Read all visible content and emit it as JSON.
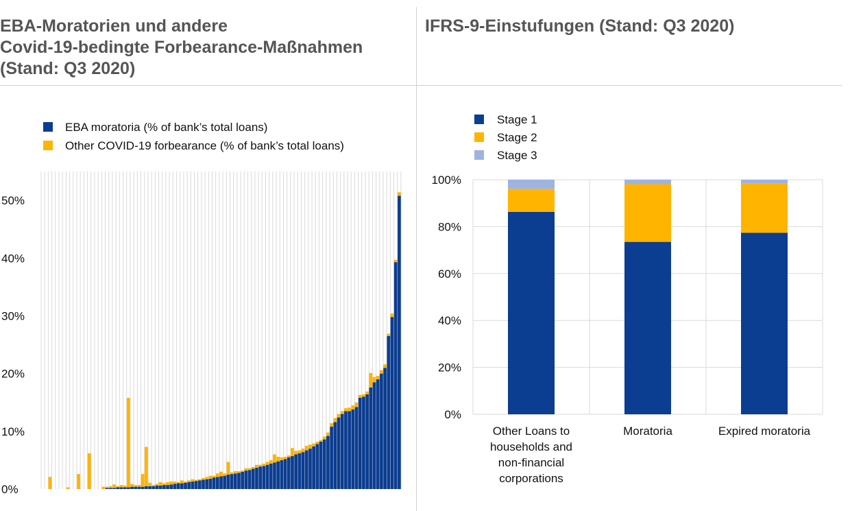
{
  "panels": {
    "left_title_lines": [
      "EBA-Moratorien und andere",
      "Covid-19-bedingte Forbearance-Maßnahmen",
      "(Stand: Q3 2020)"
    ],
    "right_title": "IFRS-9-Einstufungen (Stand: Q3 2020)"
  },
  "colors": {
    "dark_blue": "#0b3d91",
    "yellow": "#ffb400",
    "light_blue": "#9fb3e0",
    "grid": "#d9d9d9"
  },
  "chart_data": [
    {
      "type": "bar",
      "stacked": true,
      "title": "EBA-Moratorien und andere Covid-19-bedingte Forbearance-Maßnahmen (Stand: Q3 2020)",
      "xlabel": "",
      "ylabel": "",
      "ylim": [
        0,
        55
      ],
      "yticks": [
        0,
        10,
        20,
        30,
        40,
        50
      ],
      "ytick_labels": [
        "0%",
        "10%",
        "20%",
        "30%",
        "40%",
        "50%"
      ],
      "legend": [
        "EBA moratoria (% of bank’s total loans)",
        "Other COVID-19 forbearance  (% of bank’s total loans)"
      ],
      "legend_position": "top-left",
      "series": [
        {
          "name": "EBA moratoria (% of bank’s total loans)",
          "values": [
            0,
            0,
            0,
            0,
            0,
            0,
            0,
            0,
            0,
            0,
            0,
            0,
            0,
            0,
            0,
            0,
            0,
            0,
            0.2,
            0.2,
            0.2,
            0.3,
            0.3,
            0.3,
            0.3,
            0.4,
            0.4,
            0.4,
            0.4,
            0.5,
            0.5,
            0.5,
            0.6,
            0.6,
            0.7,
            0.7,
            0.8,
            0.9,
            1.0,
            1.0,
            1.1,
            1.2,
            1.3,
            1.4,
            1.5,
            1.6,
            1.7,
            1.8,
            2.0,
            2.1,
            2.2,
            2.3,
            2.5,
            2.6,
            2.7,
            2.8,
            3.0,
            3.2,
            3.3,
            3.5,
            3.7,
            3.9,
            4.0,
            4.2,
            4.4,
            4.6,
            4.8,
            5.0,
            5.2,
            5.5,
            5.7,
            6.0,
            6.2,
            6.4,
            6.7,
            7.0,
            7.4,
            7.8,
            8.2,
            8.6,
            9.2,
            10.8,
            11.6,
            12.4,
            13.0,
            13.5,
            13.5,
            13.8,
            14.2,
            15.8,
            16.0,
            16.4,
            17.6,
            18.5,
            19.0,
            20.0,
            21.0,
            26.5,
            29.8,
            39.3,
            50.8
          ]
        },
        {
          "name": "Other COVID-19 forbearance  (% of bank’s total loans)",
          "values": [
            0,
            0,
            2.1,
            0,
            0,
            0,
            0,
            0.3,
            0,
            0,
            2.6,
            0,
            0,
            6.2,
            0,
            0,
            0,
            0.4,
            0.2,
            0.3,
            0.6,
            0.2,
            0.4,
            0.3,
            15.5,
            0.5,
            0.3,
            0.3,
            2.2,
            6.8,
            0.6,
            0.2,
            0.3,
            0.6,
            0.3,
            0.5,
            0.5,
            0.4,
            0.2,
            0.5,
            0.2,
            0.3,
            0.4,
            0.2,
            0.2,
            0.3,
            0.4,
            0.5,
            0.3,
            0.6,
            0.8,
            0.4,
            2.2,
            0.3,
            0.4,
            0.3,
            0.2,
            0.4,
            0.3,
            0.3,
            0.5,
            0.3,
            0.4,
            0.5,
            0.6,
            1.4,
            0.8,
            0.5,
            0.4,
            0.3,
            1.4,
            0.6,
            0.5,
            0.6,
            0.8,
            0.7,
            0.5,
            0.4,
            0.3,
            0.5,
            0.6,
            0.6,
            0.7,
            0.6,
            0.5,
            0.5,
            0.6,
            0.7,
            0.8,
            0.5,
            0.4,
            0.5,
            2.5,
            0.9,
            0.6,
            0.6,
            0.6,
            0.4,
            0.6,
            0.4,
            0.6
          ]
        }
      ]
    },
    {
      "type": "bar",
      "stacked": true,
      "title": "IFRS-9-Einstufungen (Stand: Q3 2020)",
      "xlabel": "",
      "ylabel": "",
      "ylim": [
        0,
        100
      ],
      "yticks": [
        0,
        20,
        40,
        60,
        80,
        100
      ],
      "ytick_labels": [
        "0%",
        "20%",
        "40%",
        "60%",
        "80%",
        "100%"
      ],
      "legend": [
        "Stage 1",
        "Stage 2",
        "Stage 3"
      ],
      "legend_position": "top-left",
      "categories": [
        [
          "Other Loans to",
          "households and",
          "non-financial",
          "corporations"
        ],
        [
          "Moratoria"
        ],
        [
          "Expired moratoria"
        ]
      ],
      "series": [
        {
          "name": "Stage 1",
          "values": [
            86.3,
            73.5,
            77.4
          ]
        },
        {
          "name": "Stage 2",
          "values": [
            9.8,
            24.6,
            20.9
          ]
        },
        {
          "name": "Stage 3",
          "values": [
            3.9,
            1.9,
            1.7
          ]
        }
      ]
    }
  ]
}
